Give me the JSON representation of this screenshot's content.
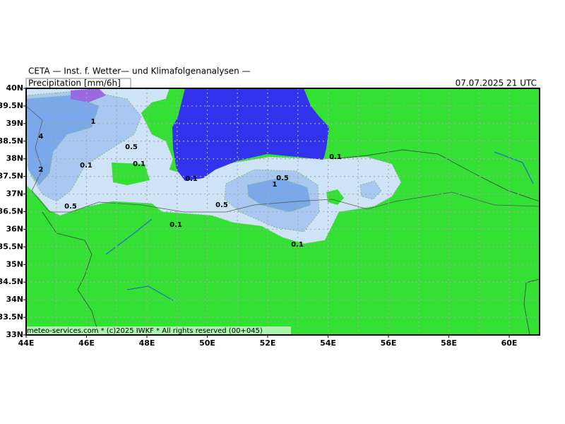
{
  "header": {
    "source": "CETA — Inst. f. Wetter— und Klimafolgenanalysen —",
    "field": "Precipitation [mm/6h]",
    "valid_time": "07.07.2025 21 UTC"
  },
  "map": {
    "lat_labels": [
      "40N",
      "39.5N",
      "39N",
      "38.5N",
      "38N",
      "37.5N",
      "37N",
      "36.5N",
      "36N",
      "35.5N",
      "35N",
      "34.5N",
      "34N",
      "33.5N",
      "33N"
    ],
    "lon_labels": [
      "44E",
      "46E",
      "48E",
      "50E",
      "52E",
      "54E",
      "56E",
      "58E",
      "60E"
    ],
    "contour_labels": [
      "4",
      "2",
      "1",
      "0.5",
      "0.1",
      "0.1",
      "0.5",
      "0.1",
      "0.5",
      "0.1",
      "0.5",
      "1",
      "0.1",
      "0.1"
    ],
    "credit": "meteo-services.com * (c)2025 IWKF * All rights reserved (00+045)"
  }
}
